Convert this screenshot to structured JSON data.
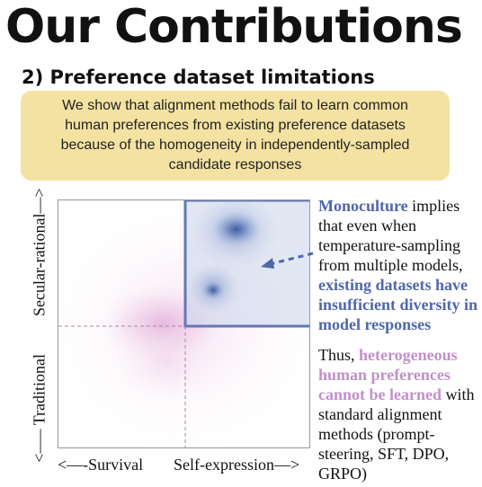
{
  "header": {
    "title": "Our Contributions",
    "subtitle": "2) Preference dataset limitations"
  },
  "callout": {
    "text": "We show that alignment methods fail to learn common human preferences from existing preference datasets because of the homogeneity in independently-sampled candidate responses"
  },
  "plot": {
    "y_axis_label": "<—– Traditional          Secular-rational—>",
    "y_axis_top": "Secular-rational—>",
    "y_axis_bottom": "<—– Traditional",
    "x_axis_left": "<—-Survival",
    "x_axis_right": "Self-expression—>",
    "colors": {
      "human_density": "#d98fcd",
      "model_density": "#4a64a8",
      "box_border": "#6378b4"
    }
  },
  "annotations": {
    "monoculture": {
      "highlight": "Monoculture",
      "text_1": " implies that even when temperature-sampling from multiple models, ",
      "highlight_2": "existing datasets have insufficient diversity in model responses"
    },
    "thus": {
      "lead": "Thus, ",
      "highlight": "heterogeneous human preferences cannot be learned",
      "text": " with standard alignment methods (prompt-steering, SFT, DPO, GRPO)"
    }
  }
}
